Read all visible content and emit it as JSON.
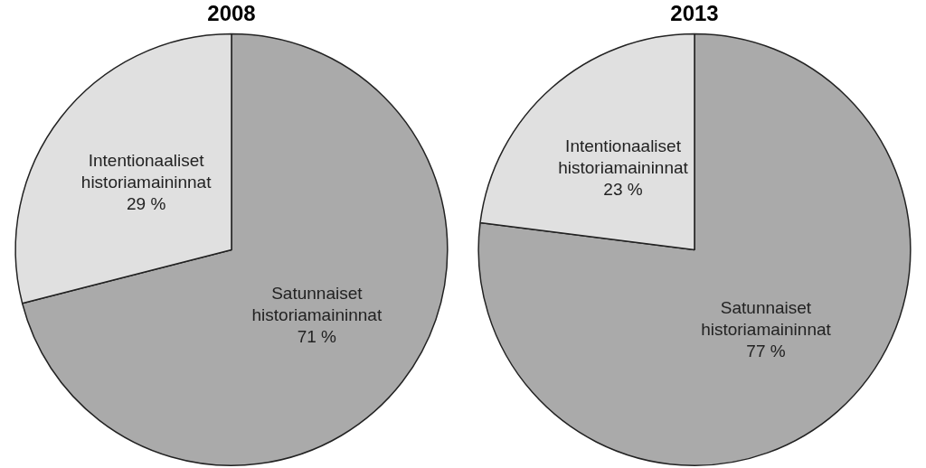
{
  "chart_data": [
    {
      "type": "pie",
      "title": "2008",
      "categories": [
        "Satunnaiset historiamaininnat",
        "Intentionaaliset historiamaininnat"
      ],
      "values": [
        71,
        29
      ],
      "value_labels": [
        "71 %",
        "29 %"
      ],
      "colors": [
        "#aaaaaa",
        "#e0e0e0"
      ],
      "data_labels": true,
      "legend": false
    },
    {
      "type": "pie",
      "title": "2013",
      "categories": [
        "Satunnaiset historiamaininnat",
        "Intentionaaliset historiamaininnat"
      ],
      "values": [
        77,
        23
      ],
      "value_labels": [
        "77 %",
        "23 %"
      ],
      "colors": [
        "#aaaaaa",
        "#e0e0e0"
      ],
      "data_labels": true,
      "legend": false
    }
  ]
}
